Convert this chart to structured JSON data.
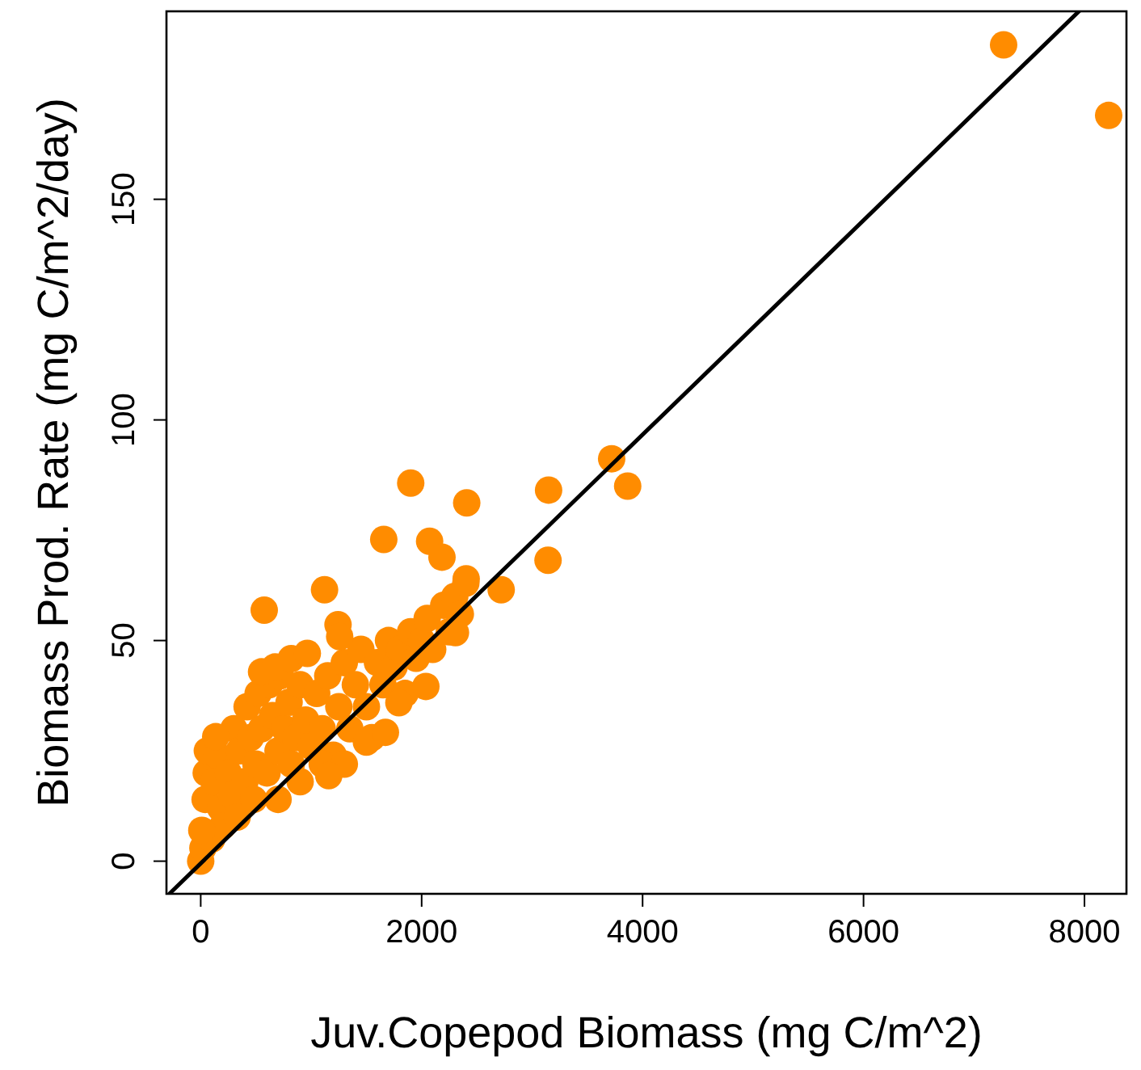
{
  "chart_data": {
    "type": "scatter",
    "xlabel": "Juv.Copepod Biomass (mg C/m^2)",
    "ylabel": "Biomass Prod. Rate (mg C/m^2/day)",
    "xlim": [
      -310,
      8380
    ],
    "ylim": [
      -7.4,
      192.6
    ],
    "xticks": [
      0,
      2000,
      4000,
      6000,
      8000
    ],
    "yticks": [
      0,
      50,
      100,
      150
    ],
    "grid": false,
    "marker": "circle",
    "series": [
      {
        "color": "#ff8c00",
        "x": [
          0,
          20,
          40,
          50,
          60,
          100,
          120,
          150,
          180,
          200,
          250,
          280,
          300,
          330,
          350,
          400,
          420,
          450,
          480,
          500,
          520,
          550,
          600,
          620,
          650,
          700,
          720,
          760,
          800,
          820,
          860,
          900,
          950,
          1000,
          1050,
          1100,
          1150,
          1200,
          1250,
          1300,
          1350,
          1400,
          1450,
          1500,
          1550,
          1600,
          1650,
          1700,
          1750,
          1800,
          1850,
          1900,
          1950,
          2000,
          2050,
          2100,
          2200,
          2250,
          2300,
          2350,
          2400,
          700,
          900,
          1100,
          1300,
          1500,
          1159,
          10,
          136,
          551,
          673,
          819,
          965,
          575,
          1121,
          1243,
          1258,
          1657,
          1672,
          1794,
          1901,
          2038,
          2072,
          2184,
          2306,
          2403,
          2408,
          2720,
          3144,
          3149,
          3720,
          3865,
          7268,
          8219
        ],
        "values": [
          0,
          3,
          14,
          20,
          25,
          5,
          18,
          24,
          12,
          8,
          20,
          15,
          30,
          10,
          25,
          18,
          35,
          28,
          14,
          22,
          38,
          30,
          20,
          40,
          33,
          25,
          42,
          30,
          36,
          22,
          28,
          40,
          32,
          26,
          38,
          30,
          42,
          24,
          35,
          45,
          30,
          40,
          48,
          35,
          28,
          45,
          40,
          50,
          44,
          48,
          38,
          52,
          46,
          50,
          55,
          48,
          58,
          52,
          60,
          56,
          63,
          14,
          18,
          22,
          22,
          27,
          19.4,
          7,
          28.2,
          42.9,
          44,
          45.9,
          47.1,
          56.9,
          61.5,
          53.6,
          50.9,
          72.9,
          29.2,
          35.9,
          85.7,
          39.6,
          72.5,
          68.9,
          51.8,
          64,
          81.2,
          61.5,
          68.2,
          84.1,
          91.2,
          85,
          185,
          169
        ]
      },
      {
        "type": "line",
        "color": "#000000",
        "marker": "none",
        "line_style": "solid",
        "x": [
          -280,
          7950
        ],
        "values": [
          -7.3,
          192.6
        ]
      }
    ]
  }
}
